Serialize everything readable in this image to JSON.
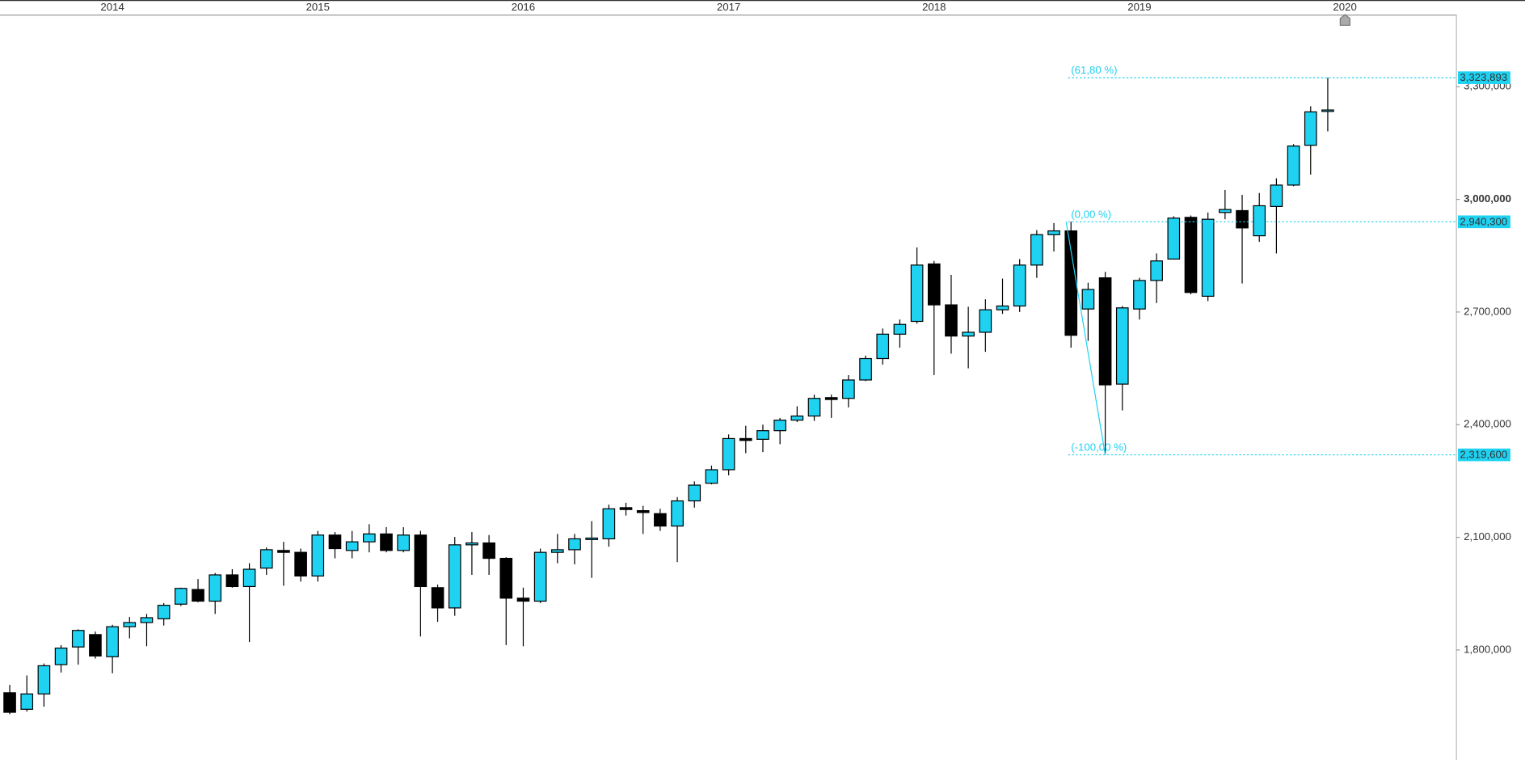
{
  "chart_data": {
    "type": "candlestick",
    "categories": [
      null,
      null,
      null,
      null,
      null,
      null,
      "2014",
      null,
      null,
      null,
      null,
      null,
      null,
      null,
      null,
      null,
      null,
      null,
      "2015",
      null,
      null,
      null,
      null,
      null,
      null,
      null,
      null,
      null,
      null,
      null,
      "2016",
      null,
      null,
      null,
      null,
      null,
      null,
      null,
      null,
      null,
      null,
      null,
      "2017",
      null,
      null,
      null,
      null,
      null,
      null,
      null,
      null,
      null,
      null,
      null,
      "2018",
      null,
      null,
      null,
      null,
      null,
      null,
      null,
      null,
      null,
      null,
      null,
      "2019",
      null,
      null,
      null,
      null,
      null,
      null,
      null,
      null,
      null,
      null,
      null,
      "2020"
    ],
    "open": [
      1686000,
      1642000,
      1683000,
      1761000,
      1808000,
      1841000,
      1782000,
      1862000,
      1873000,
      1883000,
      1922000,
      1961000,
      1930000,
      2000000,
      1969000,
      2018000,
      2065000,
      2060000,
      1997000,
      2106000,
      2065000,
      2088000,
      2109000,
      2065000,
      2106000,
      1966000,
      1912000,
      2080000,
      2085000,
      2044000,
      1938000,
      1930000,
      2060000,
      2067000,
      2096000,
      2096000,
      2179000,
      2171000,
      2163000,
      2130000,
      2197000,
      2244000,
      2280000,
      2363000,
      2361000,
      2384000,
      2412000,
      2423000,
      2472000,
      2470000,
      2519000,
      2576000,
      2641000,
      2675000,
      2828000,
      2719000,
      2636000,
      2646000,
      2706000,
      2716000,
      2825000,
      2906000,
      2916000,
      2708000,
      2791000,
      2508000,
      2708000,
      2784000,
      2841000,
      2952000,
      2742000,
      2965000,
      2970000,
      2903000,
      2981000,
      3038000,
      3144000,
      3235000,
      null
    ],
    "high": [
      1707000,
      1732000,
      1764000,
      1813000,
      1855000,
      1849000,
      1867000,
      1888000,
      1896000,
      1925000,
      1966000,
      1989000,
      2005000,
      2015000,
      2031000,
      2073000,
      2088000,
      2070000,
      2117000,
      2114000,
      2117000,
      2135000,
      2127000,
      2127000,
      2117000,
      1974000,
      2101000,
      2114000,
      2106000,
      2047000,
      1966000,
      2070000,
      2109000,
      2109000,
      2143000,
      2187000,
      2192000,
      2184000,
      2176000,
      2207000,
      2249000,
      2291000,
      2374000,
      2397000,
      2400000,
      2418000,
      2449000,
      2480000,
      2480000,
      2532000,
      2584000,
      2656000,
      2680000,
      2872000,
      2836000,
      2799000,
      2714000,
      2734000,
      2789000,
      2841000,
      2918000,
      2937000,
      2940300,
      2778000,
      2807000,
      2716000,
      2791000,
      2856000,
      2955000,
      2957000,
      2965000,
      3025000,
      3012000,
      3017000,
      3056000,
      3147000,
      3248000,
      3323893,
      null
    ],
    "low": [
      1629000,
      1636000,
      1649000,
      1740000,
      1761000,
      1777000,
      1738000,
      1831000,
      1810000,
      1865000,
      1917000,
      1927000,
      1896000,
      1966000,
      1821000,
      2000000,
      1971000,
      1982000,
      1982000,
      2044000,
      2044000,
      2060000,
      2060000,
      2060000,
      1836000,
      1875000,
      1891000,
      2000000,
      2000000,
      1813000,
      1810000,
      1925000,
      2031000,
      2028000,
      1992000,
      2075000,
      2158000,
      2109000,
      2117000,
      2034000,
      2179000,
      2241000,
      2265000,
      2324000,
      2327000,
      2348000,
      2407000,
      2410000,
      2418000,
      2446000,
      2516000,
      2560000,
      2605000,
      2669000,
      2532000,
      2589000,
      2550000,
      2594000,
      2695000,
      2700000,
      2791000,
      2861000,
      2605000,
      2623000,
      2319600,
      2438000,
      2680000,
      2724000,
      2841000,
      2747000,
      2729000,
      2947000,
      2776000,
      2887000,
      2856000,
      3035000,
      3066000,
      3181000,
      null
    ],
    "close": [
      1634000,
      1683000,
      1758000,
      1805000,
      1852000,
      1784000,
      1862000,
      1873000,
      1886000,
      1919000,
      1964000,
      1930000,
      2000000,
      1969000,
      2015000,
      2067000,
      2060000,
      1997000,
      2106000,
      2070000,
      2088000,
      2109000,
      2065000,
      2106000,
      1969000,
      1912000,
      2080000,
      2085000,
      2044000,
      1938000,
      1930000,
      2060000,
      2067000,
      2096000,
      2098000,
      2176000,
      2174000,
      2166000,
      2130000,
      2197000,
      2239000,
      2280000,
      2363000,
      2358000,
      2384000,
      2412000,
      2423000,
      2470000,
      2467000,
      2519000,
      2576000,
      2641000,
      2667000,
      2825000,
      2719000,
      2636000,
      2646000,
      2706000,
      2716000,
      2825000,
      2906000,
      2916000,
      2638000,
      2760000,
      2506000,
      2711000,
      2784000,
      2836000,
      2950000,
      2752000,
      2947000,
      2973000,
      2924000,
      2983000,
      3038000,
      3142000,
      3233000,
      3238000,
      null
    ],
    "up_color": "#1fd2f2",
    "down_color": "#000000",
    "ylim": [
      1507000,
      3492000
    ],
    "yticks": [
      {
        "value": 1800000,
        "label": "1,800,000"
      },
      {
        "value": 2100000,
        "label": "2,100,000"
      },
      {
        "value": 2400000,
        "label": "2,400,000"
      },
      {
        "value": 2700000,
        "label": "2,700,000"
      },
      {
        "value": 3000000,
        "label": "3,000,000",
        "bold": true
      },
      {
        "value": 3300000,
        "label": "3,300,000"
      }
    ],
    "fib_color": "#1fd2f2",
    "fib_levels": [
      {
        "label": "(61,80 %)",
        "value": 3323893,
        "price_label": "3,323,893"
      },
      {
        "label": "(0,00 %)",
        "value": 2940300,
        "price_label": "2,940,300"
      },
      {
        "label": "(-100,00 %)",
        "value": 2319600,
        "price_label": "2,319,600"
      }
    ]
  }
}
